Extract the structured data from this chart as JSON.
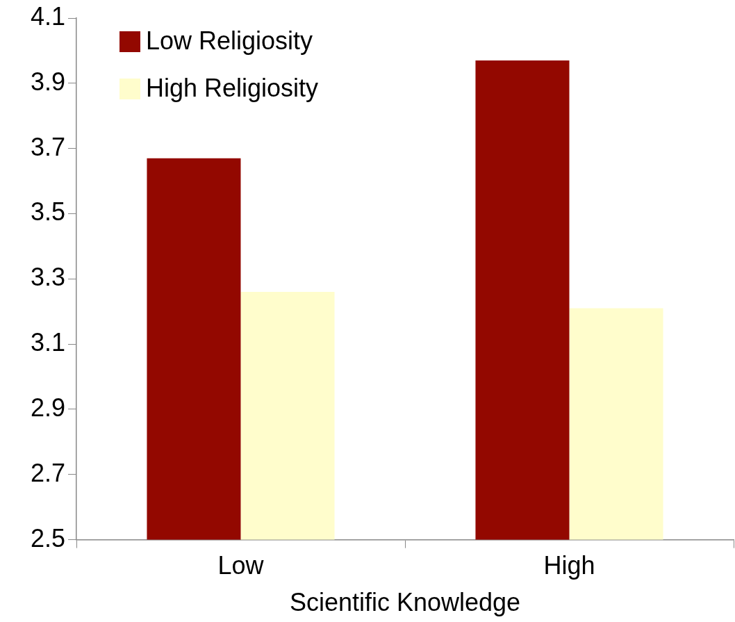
{
  "chart_data": {
    "type": "bar",
    "xlabel": "Scientific Knowledge",
    "categories": [
      "Low",
      "High"
    ],
    "series": [
      {
        "name": "Low Religiosity",
        "color": "#930800",
        "values": [
          3.67,
          3.97
        ]
      },
      {
        "name": "High Religiosity",
        "color": "#fffdcc",
        "values": [
          3.26,
          3.21
        ]
      }
    ],
    "ylim": [
      2.5,
      4.1
    ],
    "yticks": [
      2.5,
      2.7,
      2.9,
      3.1,
      3.3,
      3.5,
      3.7,
      3.9,
      4.1
    ],
    "grid": false,
    "legend": "top left"
  }
}
